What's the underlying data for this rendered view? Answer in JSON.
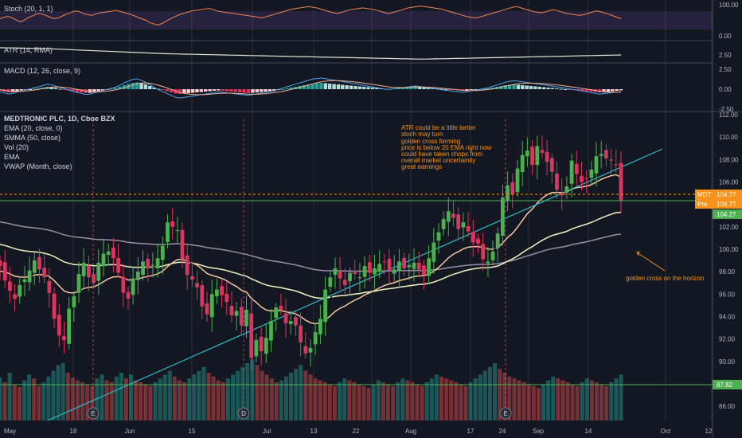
{
  "colors": {
    "background": "#131722",
    "grid": "#2a2e39",
    "up": "#26a69a",
    "down": "#ef5350",
    "up_candle": "#4caf50",
    "down_candle": "#d8355f",
    "stoch_k": "#f0844f",
    "stoch_d": "#e8c7a0",
    "atr": "#dfe6d4",
    "macd_line": "#4fa3f0",
    "signal_line": "#f0b090",
    "ema20": "#f5c7a0",
    "smma50": "#f0f5c0",
    "ema_long": "#9b8ea8",
    "vwap": "#101010",
    "trendline": "#2dbcc9",
    "annotation": "#f7931a",
    "price_line": "#f7931a",
    "pre_line": "#4caf50"
  },
  "chart_data": [
    {
      "type": "line",
      "panel": "stoch",
      "title": "Stoch (20, 1, 1)",
      "ylim": [
        0,
        100
      ],
      "ticks": [
        {
          "value": 100,
          "label": "100.00"
        },
        {
          "value": 0,
          "label": "0.00"
        }
      ],
      "band": [
        20,
        80
      ],
      "series": [
        {
          "values": [
            55,
            60,
            62,
            58,
            50,
            45,
            52,
            60,
            65,
            72,
            70,
            66,
            60,
            55,
            58,
            64,
            70,
            75,
            80,
            78,
            72,
            68,
            66,
            70,
            74,
            76,
            78,
            80,
            82,
            78,
            74,
            70,
            66,
            60,
            55,
            50,
            42,
            38,
            35,
            40,
            48,
            56,
            62,
            68,
            72,
            76,
            80,
            82,
            84,
            86,
            88,
            85,
            80,
            78,
            76,
            74,
            72,
            70,
            68,
            66,
            64,
            62,
            60,
            58,
            62,
            66,
            70,
            74,
            78,
            82,
            86,
            88,
            90,
            92,
            94,
            92,
            90,
            86,
            82,
            78,
            74,
            72,
            76,
            80,
            84,
            86,
            88,
            90,
            88,
            86,
            84,
            80,
            76,
            72,
            74,
            78,
            82,
            86,
            90,
            92,
            94,
            96,
            94,
            92,
            90,
            88,
            86,
            82,
            78,
            74,
            70,
            66,
            62,
            60,
            58,
            60,
            64,
            68,
            72,
            76,
            80,
            84,
            88,
            92,
            94,
            90,
            86,
            82,
            78,
            76,
            74,
            78,
            82,
            84,
            80,
            76,
            72,
            70,
            68,
            66,
            68,
            72,
            76,
            80,
            78,
            74,
            70,
            65,
            60,
            55
          ]
        }
      ]
    },
    {
      "type": "line",
      "panel": "atr",
      "title": "ATR (14, RMA)",
      "ticks": [
        {
          "value": 2.5,
          "label": "2.50"
        }
      ],
      "series": [
        {
          "values": [
            2.85,
            2.84,
            2.83,
            2.82,
            2.81,
            2.8,
            2.78,
            2.76,
            2.74,
            2.72,
            2.7,
            2.68,
            2.66,
            2.64,
            2.62,
            2.6,
            2.58,
            2.56,
            2.55,
            2.54,
            2.53,
            2.52,
            2.51,
            2.5,
            2.49,
            2.48,
            2.47,
            2.46,
            2.45,
            2.44,
            2.43,
            2.42,
            2.41,
            2.4,
            2.39,
            2.38,
            2.37,
            2.36,
            2.35,
            2.34,
            2.33,
            2.32,
            2.31,
            2.3,
            2.3,
            2.31,
            2.32,
            2.33,
            2.34,
            2.35,
            2.36,
            2.37,
            2.38,
            2.39,
            2.4,
            2.41,
            2.42,
            2.43,
            2.44,
            2.45,
            2.46,
            2.47,
            2.48,
            2.49,
            2.5
          ]
        }
      ]
    },
    {
      "type": "bar",
      "panel": "macd",
      "title": "MACD (12, 26, close, 9)",
      "ticks": [
        {
          "value": 2.5,
          "label": "2.50"
        },
        {
          "value": 0,
          "label": "0.00"
        },
        {
          "value": -2.5,
          "label": "-2.50"
        }
      ],
      "series": [
        {
          "values": [
            -0.2,
            -0.3,
            -0.4,
            -0.35,
            -0.25,
            -0.15,
            -0.1,
            -0.05,
            0.05,
            0.1,
            0.2,
            0.3,
            0.25,
            0.15,
            0.05,
            -0.05,
            -0.15,
            -0.25,
            -0.35,
            -0.4,
            -0.5,
            -0.45,
            -0.35,
            -0.25,
            -0.15,
            -0.05,
            0.05,
            0.15,
            0.3,
            0.5,
            0.65,
            0.8,
            0.85,
            0.75,
            0.6,
            0.4,
            0.2,
            0.05,
            -0.1,
            -0.25,
            -0.4,
            -0.55,
            -0.6,
            -0.55,
            -0.5,
            -0.45,
            -0.4,
            -0.35,
            -0.3,
            -0.25,
            -0.2,
            -0.15,
            -0.2,
            -0.25,
            -0.3,
            -0.35,
            -0.4,
            -0.45,
            -0.5,
            -0.45,
            -0.4,
            -0.35,
            -0.3,
            -0.25,
            -0.2,
            -0.1,
            0,
            0.1,
            0.2,
            0.3,
            0.4,
            0.5,
            0.6,
            0.7,
            0.75,
            0.8,
            0.75,
            0.7,
            0.65,
            0.6,
            0.55,
            0.5,
            0.45,
            0.4,
            0.35,
            0.3,
            0.25,
            0.2,
            0.15,
            0.1,
            0.05,
            0.05,
            0.1,
            0.15,
            0.2,
            0.25,
            0.3,
            0.35,
            0.3,
            0.25,
            0.2,
            0.15,
            0.1,
            0.05,
            0,
            -0.05,
            -0.1,
            -0.15,
            -0.2,
            -0.15,
            -0.1,
            -0.05,
            0,
            0.05,
            0.1,
            0.2,
            0.3,
            0.4,
            0.5,
            0.55,
            0.6,
            0.55,
            0.5,
            0.45,
            0.4,
            0.35,
            0.3,
            0.25,
            0.2,
            0.15,
            0.1,
            0.05,
            0,
            -0.05,
            -0.1,
            -0.15,
            -0.2,
            -0.25,
            -0.3,
            -0.35,
            -0.4,
            -0.35,
            -0.3,
            -0.25,
            -0.2,
            -0.15
          ]
        }
      ]
    },
    {
      "type": "candlestick",
      "panel": "price",
      "title": "MEDTRONIC PLC, 1D, Cboe BZX",
      "legend": [
        "EMA (20, close, 0)",
        "SMMA (50, close)",
        "Vol (20)",
        "EMA",
        "VWAP (Month, close)"
      ],
      "ylim": [
        84.9,
        112.4
      ],
      "y_ticks": [
        "86.00",
        "88.00",
        "90.00",
        "92.00",
        "94.00",
        "96.00",
        "98.00",
        "100.00",
        "102.00",
        "104.00",
        "106.00",
        "108.00",
        "110.00",
        "112.00"
      ],
      "x_ticks": [
        "May",
        "18",
        "Jun",
        "15",
        "Jul",
        "13",
        "22",
        "Aug",
        "17",
        "24",
        "Sep",
        "14",
        "Oct",
        "12"
      ],
      "series": [
        {
          "name": "MDT",
          "values": [
            98.5,
            97.2,
            96.3,
            95.6,
            96.8,
            97.3,
            98.1,
            99.0,
            98.2,
            97.5,
            96.1,
            93.8,
            92.3,
            91.9,
            94.7,
            95.8,
            97.8,
            98.8,
            97.5,
            97.0,
            98.8,
            99.6,
            99.8,
            99.2,
            97.9,
            96.1,
            95.6,
            97.4,
            98.0,
            98.9,
            98.3,
            98.6,
            99.2,
            100.3,
            102.4,
            102.0,
            101.7,
            99.1,
            97.7,
            97.3,
            96.6,
            94.9,
            94.2,
            96.0,
            96.4,
            95.9,
            95.3,
            94.1,
            94.5,
            93.2,
            94.6,
            90.3,
            91.9,
            90.9,
            92.1,
            93.6,
            94.8,
            94.6,
            93.4,
            93.6,
            93.2,
            91.7,
            90.7,
            91.2,
            92.6,
            93.8,
            96.4,
            97.5,
            98.3,
            97.4,
            96.8,
            97.9,
            97.8,
            97.5,
            98.5,
            97.9,
            98.3,
            98.7,
            98.9,
            98.1,
            98.2,
            98.9,
            98.3,
            98.6,
            98.8,
            98.2,
            97.7,
            99.2,
            100.6,
            101.5,
            102.7,
            103.4,
            102.8,
            101.8,
            102.4,
            101.6,
            100.6,
            100.5,
            99.1,
            98.9,
            99.8,
            101.4,
            104.6,
            105.7,
            104.9,
            107.2,
            108.4,
            108.8,
            107.5,
            109.2,
            108.6,
            107.8,
            106.9,
            105.3,
            104.8,
            105.6,
            107.9,
            106.7,
            106.0,
            106.3,
            107.1,
            108.3,
            108.5,
            108.1,
            107.9,
            107.5,
            104.3
          ]
        },
        {
          "name": "EMA (20, close, 0)"
        },
        {
          "name": "SMMA (50, close)"
        },
        {
          "name": "Vol (20)",
          "values": [
            45,
            40,
            50,
            38,
            35,
            42,
            48,
            44,
            36,
            40,
            46,
            52,
            58,
            60,
            50,
            45,
            42,
            40,
            38,
            36,
            44,
            48,
            42,
            40,
            46,
            50,
            44,
            48,
            42,
            40,
            38,
            36,
            40,
            44,
            48,
            52,
            46,
            42,
            40,
            44,
            48,
            52,
            56,
            50,
            46,
            42,
            40,
            44,
            48,
            52,
            56,
            60,
            64,
            58,
            52,
            48,
            44,
            40,
            42,
            46,
            50,
            54,
            58,
            52,
            48,
            44,
            42,
            40,
            38,
            36,
            40,
            44,
            42,
            40,
            38,
            36,
            34,
            38,
            42,
            40,
            38,
            36,
            40,
            44,
            42,
            40,
            38,
            36,
            40,
            44,
            48,
            46,
            44,
            42,
            40,
            38,
            36,
            40,
            44,
            48,
            52,
            56,
            60,
            54,
            50,
            46,
            44,
            42,
            40,
            38,
            36,
            34,
            38,
            42,
            46,
            44,
            42,
            40,
            38,
            36,
            40,
            44,
            42,
            40,
            38,
            36,
            40,
            44,
            48
          ]
        },
        {
          "name": "EMA"
        },
        {
          "name": "VWAP (Month, close)"
        }
      ],
      "price_labels": [
        {
          "tag": "MDT",
          "value": "104.77"
        },
        {
          "tag": "Pre",
          "value": "104.77"
        },
        {
          "tag": "",
          "value": "104.27"
        },
        {
          "tag": "",
          "value": "87.82"
        }
      ],
      "event_markers": [
        "E",
        "D",
        "E"
      ],
      "annotations": [
        "ATR could be a little better",
        "stoch may turn",
        "golden cross forming",
        "price is below 20 EMA right now",
        "could have taken chops from",
        "overall market uncertainity",
        "great earnings",
        "golden cross on the horizon"
      ]
    }
  ]
}
